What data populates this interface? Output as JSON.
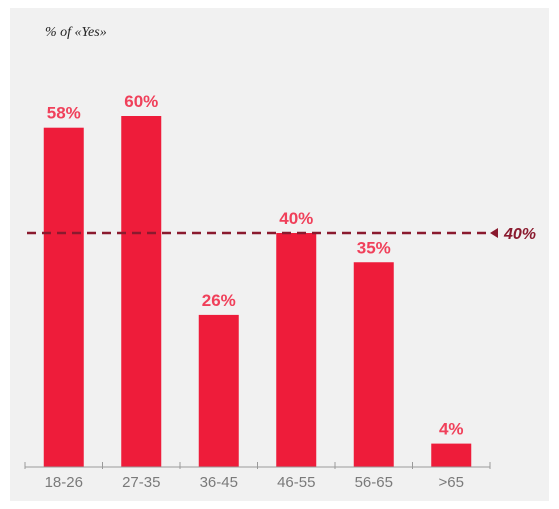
{
  "chart_data": {
    "type": "bar",
    "title": "",
    "ylabel": "% of «Yes»",
    "xlabel": "",
    "categories": [
      "18-26",
      "27-35",
      "36-45",
      "46-55",
      "56-65",
      ">65"
    ],
    "values": [
      58,
      60,
      26,
      40,
      35,
      4
    ],
    "value_labels": [
      "58%",
      "60%",
      "26%",
      "40%",
      "35%",
      "4%"
    ],
    "reference_line": {
      "value": 40,
      "label": "40%",
      "style": "dashed"
    },
    "grid": false,
    "legend": "none",
    "colors": {
      "bar": "#ee1c3a",
      "value_label": "#f0405a",
      "reference": "#8a1a2e",
      "background": "#f1f1f1"
    }
  }
}
